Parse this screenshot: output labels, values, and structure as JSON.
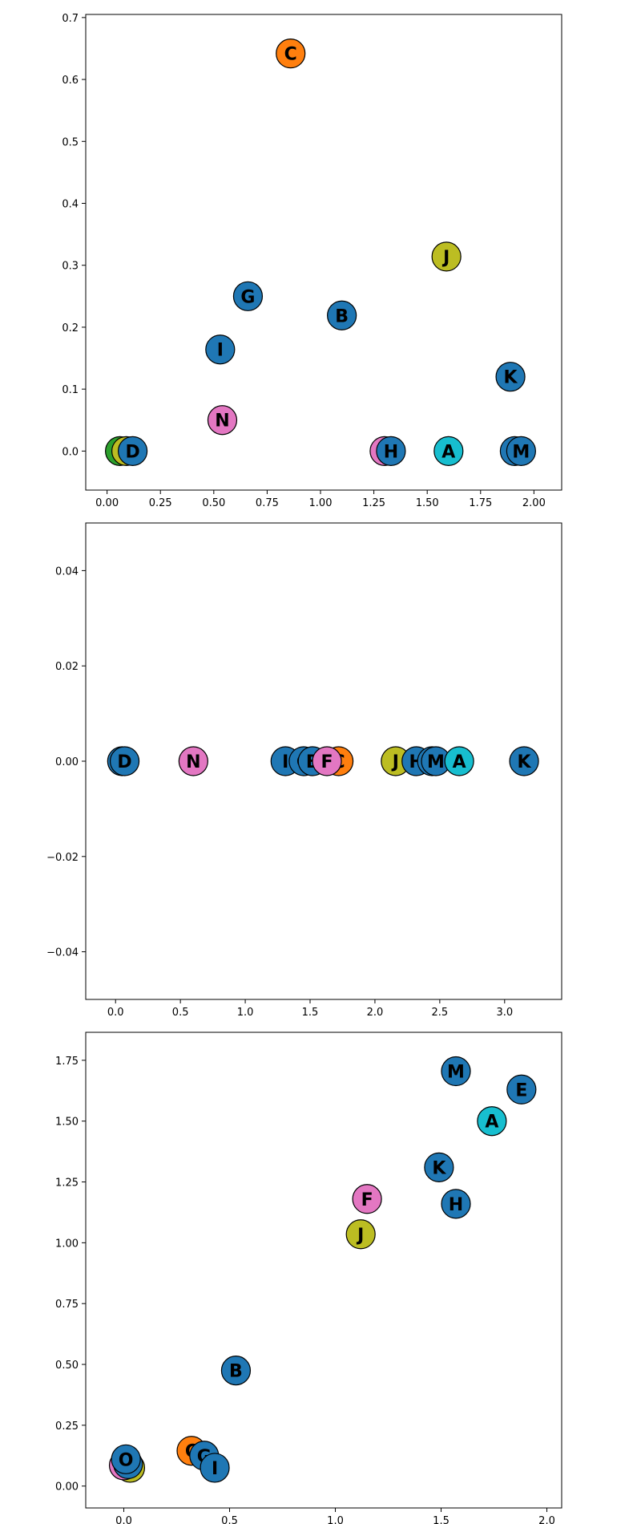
{
  "colors": {
    "blue": "#1f77b4",
    "orange": "#ff7f0e",
    "olive": "#bcbd22",
    "pink": "#e377c2",
    "cyan": "#17becf",
    "green": "#2ca02c"
  },
  "chart_data": [
    {
      "type": "scatter",
      "title": "",
      "xlabel": "",
      "ylabel": "",
      "xlim": [
        -0.1,
        2.13
      ],
      "ylim": [
        -0.063,
        0.705
      ],
      "xticks": [
        0.0,
        0.25,
        0.5,
        0.75,
        1.0,
        1.25,
        1.5,
        1.75,
        2.0
      ],
      "xtick_labels": [
        "0.00",
        "0.25",
        "0.50",
        "0.75",
        "1.00",
        "1.25",
        "1.50",
        "1.75",
        "2.00"
      ],
      "yticks": [
        0.0,
        0.1,
        0.2,
        0.3,
        0.4,
        0.5,
        0.6,
        0.7
      ],
      "ytick_labels": [
        "0.0",
        "0.1",
        "0.2",
        "0.3",
        "0.4",
        "0.5",
        "0.6",
        "0.7"
      ],
      "grid": false,
      "points": [
        {
          "label": "L",
          "x": 0.06,
          "y": 0.0,
          "color": "green"
        },
        {
          "label": "F",
          "x": 0.09,
          "y": 0.0,
          "color": "olive"
        },
        {
          "label": "D",
          "x": 0.12,
          "y": 0.0,
          "color": "blue"
        },
        {
          "label": "N",
          "x": 0.54,
          "y": 0.05,
          "color": "pink"
        },
        {
          "label": "I",
          "x": 0.53,
          "y": 0.164,
          "color": "blue"
        },
        {
          "label": "G",
          "x": 0.66,
          "y": 0.25,
          "color": "blue"
        },
        {
          "label": "C",
          "x": 0.86,
          "y": 0.642,
          "color": "orange"
        },
        {
          "label": "B",
          "x": 1.1,
          "y": 0.219,
          "color": "blue"
        },
        {
          "label": "E",
          "x": 1.3,
          "y": 0.0,
          "color": "pink"
        },
        {
          "label": "H",
          "x": 1.33,
          "y": 0.0,
          "color": "blue"
        },
        {
          "label": "A",
          "x": 1.6,
          "y": 0.0,
          "color": "cyan"
        },
        {
          "label": "J",
          "x": 1.59,
          "y": 0.314,
          "color": "olive"
        },
        {
          "label": "K",
          "x": 1.89,
          "y": 0.12,
          "color": "blue"
        },
        {
          "label": "E",
          "x": 1.91,
          "y": 0.0,
          "color": "blue"
        },
        {
          "label": "M",
          "x": 1.94,
          "y": 0.0,
          "color": "blue"
        }
      ]
    },
    {
      "type": "scatter",
      "title": "",
      "xlabel": "",
      "ylabel": "",
      "xlim": [
        -0.23,
        3.44
      ],
      "ylim": [
        -0.05,
        0.05
      ],
      "xticks": [
        0.0,
        0.5,
        1.0,
        1.5,
        2.0,
        2.5,
        3.0
      ],
      "xtick_labels": [
        "0.0",
        "0.5",
        "1.0",
        "1.5",
        "2.0",
        "2.5",
        "3.0"
      ],
      "yticks": [
        -0.04,
        -0.02,
        0.0,
        0.02,
        0.04
      ],
      "ytick_labels": [
        "−0.04",
        "−0.02",
        "0.00",
        "0.02",
        "0.04"
      ],
      "grid": false,
      "points": [
        {
          "label": "L",
          "x": 0.05,
          "y": 0.0,
          "color": "blue"
        },
        {
          "label": "D",
          "x": 0.07,
          "y": 0.0,
          "color": "blue"
        },
        {
          "label": "N",
          "x": 0.6,
          "y": 0.0,
          "color": "pink"
        },
        {
          "label": "I",
          "x": 1.31,
          "y": 0.0,
          "color": "blue"
        },
        {
          "label": "G",
          "x": 1.45,
          "y": 0.0,
          "color": "blue"
        },
        {
          "label": "B",
          "x": 1.52,
          "y": 0.0,
          "color": "blue"
        },
        {
          "label": "C",
          "x": 1.72,
          "y": 0.0,
          "color": "orange"
        },
        {
          "label": "F",
          "x": 1.63,
          "y": 0.0,
          "color": "pink"
        },
        {
          "label": "J",
          "x": 2.16,
          "y": 0.0,
          "color": "olive"
        },
        {
          "label": "H",
          "x": 2.32,
          "y": 0.0,
          "color": "blue"
        },
        {
          "label": "E",
          "x": 2.44,
          "y": 0.0,
          "color": "blue"
        },
        {
          "label": "M",
          "x": 2.47,
          "y": 0.0,
          "color": "blue"
        },
        {
          "label": "A",
          "x": 2.65,
          "y": 0.0,
          "color": "cyan"
        },
        {
          "label": "K",
          "x": 3.15,
          "y": 0.0,
          "color": "blue"
        }
      ]
    },
    {
      "type": "scatter",
      "title": "",
      "xlabel": "",
      "ylabel": "",
      "xlim": [
        -0.18,
        2.07
      ],
      "ylim": [
        -0.09,
        1.865
      ],
      "xticks": [
        0.0,
        0.5,
        1.0,
        1.5,
        2.0
      ],
      "xtick_labels": [
        "0.0",
        "0.5",
        "1.0",
        "1.5",
        "2.0"
      ],
      "yticks": [
        0.0,
        0.25,
        0.5,
        0.75,
        1.0,
        1.25,
        1.5,
        1.75
      ],
      "ytick_labels": [
        "0.00",
        "0.25",
        "0.50",
        "0.75",
        "1.00",
        "1.25",
        "1.50",
        "1.75"
      ],
      "grid": false,
      "points": [
        {
          "label": "D",
          "x": 0.03,
          "y": 0.075,
          "color": "olive"
        },
        {
          "label": "L",
          "x": 0.0,
          "y": 0.085,
          "color": "pink"
        },
        {
          "label": "N",
          "x": 0.02,
          "y": 0.09,
          "color": "blue"
        },
        {
          "label": "O",
          "x": 0.01,
          "y": 0.11,
          "color": "blue"
        },
        {
          "label": "C",
          "x": 0.32,
          "y": 0.145,
          "color": "orange"
        },
        {
          "label": "G",
          "x": 0.38,
          "y": 0.125,
          "color": "blue"
        },
        {
          "label": "I",
          "x": 0.43,
          "y": 0.075,
          "color": "blue"
        },
        {
          "label": "B",
          "x": 0.53,
          "y": 0.475,
          "color": "blue"
        },
        {
          "label": "J",
          "x": 1.12,
          "y": 1.035,
          "color": "olive"
        },
        {
          "label": "F",
          "x": 1.15,
          "y": 1.18,
          "color": "pink"
        },
        {
          "label": "K",
          "x": 1.49,
          "y": 1.31,
          "color": "blue"
        },
        {
          "label": "H",
          "x": 1.57,
          "y": 1.16,
          "color": "blue"
        },
        {
          "label": "M",
          "x": 1.57,
          "y": 1.705,
          "color": "blue"
        },
        {
          "label": "A",
          "x": 1.74,
          "y": 1.5,
          "color": "cyan"
        },
        {
          "label": "E",
          "x": 1.88,
          "y": 1.63,
          "color": "blue"
        }
      ]
    }
  ]
}
